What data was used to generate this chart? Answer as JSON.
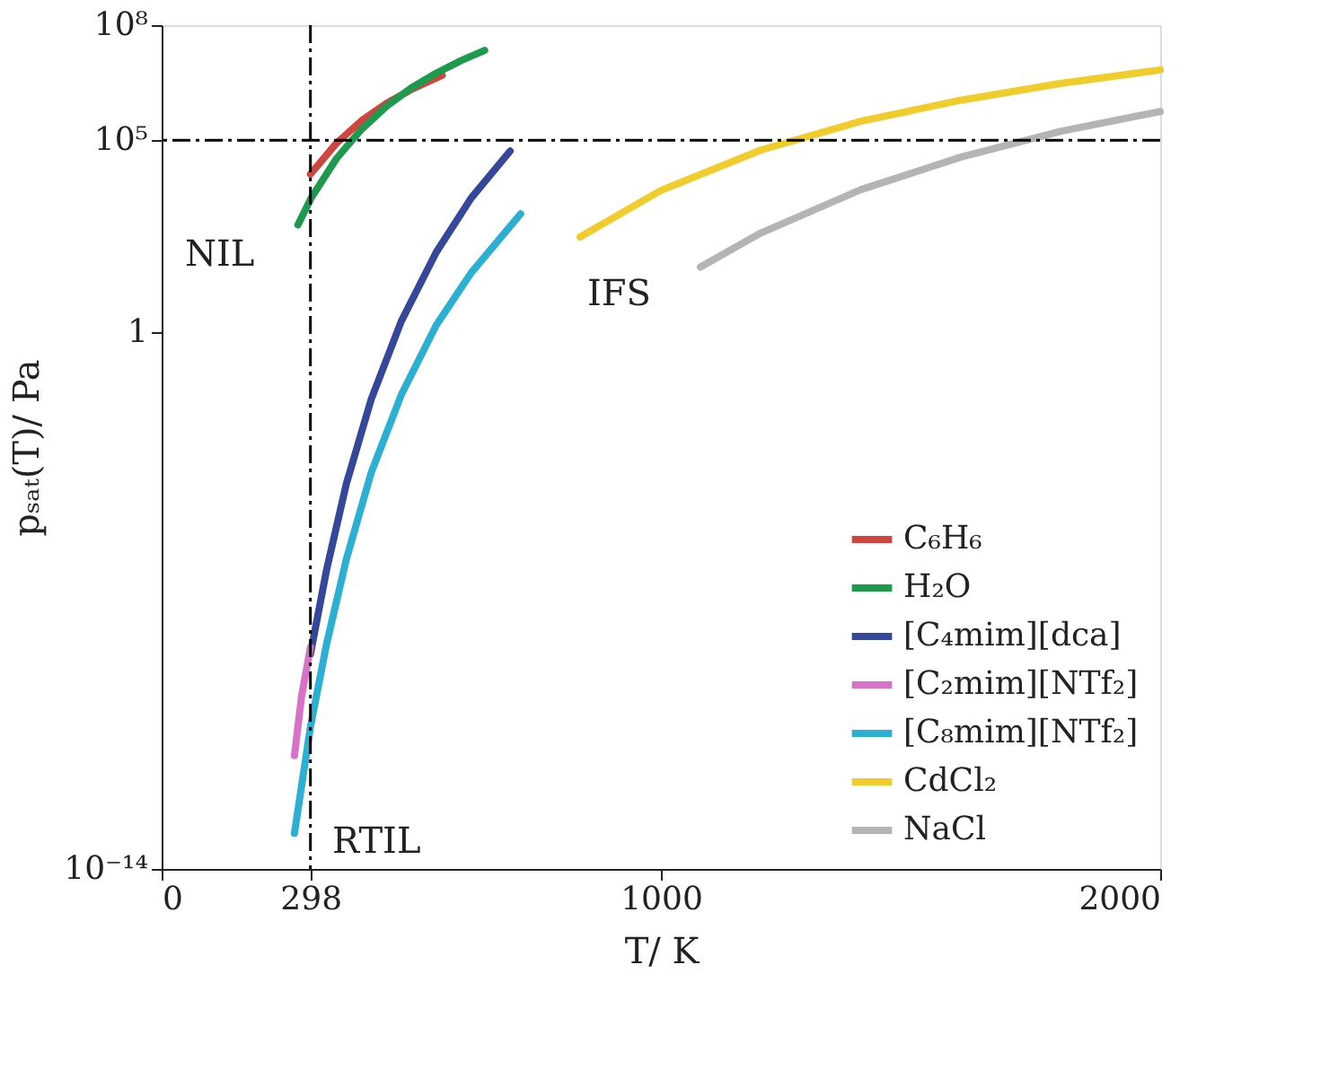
{
  "chart_data": {
    "type": "line",
    "xlabel": "T/ K",
    "ylabel": "pₛₐₜ(T)/ Pa",
    "log": "y",
    "xlim": [
      0,
      2000
    ],
    "xticks": [
      0,
      298,
      1000,
      2000
    ],
    "ylim": [
      1e-14,
      100000000.0
    ],
    "yticks": [
      {
        "value": 1e-14,
        "label": "10⁻¹⁴"
      },
      1,
      {
        "value": 100000.0,
        "label": "10⁵"
      },
      {
        "value": 100000000.0,
        "label": "10⁸"
      }
    ],
    "grid": false,
    "legend": "bottom right",
    "line_style": "solid",
    "marker": "none",
    "series": [
      {
        "name": "C₆H₆",
        "color": "#d0453f",
        "x": [
          298,
          350,
          400,
          450,
          500,
          562
        ],
        "values": [
          13000.0,
          83000.0,
          320000.0,
          910000.0,
          2100000.0,
          4900000.0
        ]
      },
      {
        "name": "H₂O",
        "color": "#1e9a4e",
        "x": [
          273,
          300,
          350,
          400,
          450,
          500,
          550,
          600,
          647
        ],
        "values": [
          620,
          3200.0,
          33000.0,
          190000.0,
          760000.0,
          2300000.0,
          5600000.0,
          12000000.0,
          22000000.0
        ]
      },
      {
        "name": "[C₄mim][dca]",
        "color": "#34479b",
        "x": [
          298,
          330,
          370,
          420,
          480,
          550,
          620,
          698
        ],
        "values": [
          4e-09,
          6e-07,
          0.00011,
          0.018,
          1.9,
          120,
          3100.0,
          52000.0
        ]
      },
      {
        "name": "[C₂mim][NTf₂]",
        "color": "#d772c8",
        "x": [
          266,
          280,
          298
        ],
        "values": [
          9e-12,
          3e-10,
          6e-09
        ]
      },
      {
        "name": "[C₈mim][NTf₂]",
        "color": "#2bb0d4",
        "x": [
          266,
          298,
          330,
          370,
          420,
          480,
          550,
          620,
          719
        ],
        "values": [
          8.5e-14,
          5e-11,
          7e-09,
          1.2e-06,
          0.00022,
          0.023,
          1.5,
          35.0,
          1200.0
        ]
      },
      {
        "name": "CdCl₂",
        "color": "#f0cc2c",
        "x": [
          838,
          1000,
          1200,
          1400,
          1600,
          1800,
          2000
        ],
        "values": [
          300,
          4900.0,
          55000.0,
          310000.0,
          1100000.0,
          3000000.0,
          6800000.0
        ]
      },
      {
        "name": "NaCl",
        "color": "#b4b4b4",
        "x": [
          1079,
          1200,
          1400,
          1600,
          1800,
          2000
        ],
        "values": [
          49,
          380,
          5100.0,
          36000.0,
          170000.0,
          560000.0
        ]
      }
    ],
    "ref_lines": [
      {
        "axis": "x",
        "value": 298,
        "line_style": "dashdot",
        "color": "#000000"
      },
      {
        "axis": "y",
        "value": 100000.0,
        "line_style": "dashdot",
        "color": "#000000"
      }
    ],
    "annotations": [
      "NIL",
      "RTIL",
      "IFS"
    ]
  }
}
